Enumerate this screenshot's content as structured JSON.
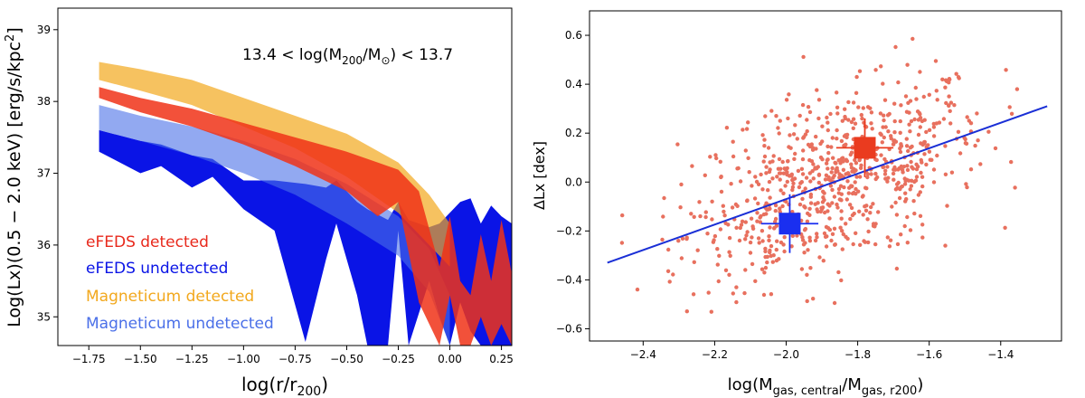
{
  "chart_data": [
    {
      "type": "area",
      "panel": "left",
      "xlabel": "log(r/r200)",
      "ylabel": "Log(Lx)(0.5 − 2.0 keV) [erg/s/kpc²]",
      "xlim": [
        -1.9,
        0.3
      ],
      "ylim": [
        34.6,
        39.3
      ],
      "xticks": [
        -1.75,
        -1.5,
        -1.25,
        -1.0,
        -0.75,
        -0.5,
        -0.25,
        0.0,
        0.25
      ],
      "xtick_labels": [
        "−1.75",
        "−1.50",
        "−1.25",
        "−1.00",
        "−0.75",
        "−0.50",
        "−0.25",
        "0.00",
        "0.25"
      ],
      "yticks": [
        35,
        36,
        37,
        38,
        39
      ],
      "ytick_labels": [
        "35",
        "36",
        "37",
        "38",
        "39"
      ],
      "annotation": "13.4 < log(M200/M⊙) < 13.7",
      "annotation_parts": {
        "pre": "13.4 < log(M",
        "sub1": "200",
        "mid": "/M",
        "sub2": "⊙",
        "post": ") < 13.7"
      },
      "legend_position": "lower-left",
      "series": [
        {
          "name": "eFEDS undetected",
          "color": "#0a14e6",
          "opacity": 1.0,
          "x": [
            -1.7,
            -1.5,
            -1.4,
            -1.25,
            -1.15,
            -1.0,
            -0.85,
            -0.7,
            -0.6,
            -0.55,
            -0.45,
            -0.4,
            -0.3,
            -0.25,
            -0.2,
            -0.1,
            -0.05,
            0.0,
            0.05,
            0.1,
            0.15,
            0.2,
            0.25,
            0.3
          ],
          "upper": [
            37.6,
            37.45,
            37.4,
            37.25,
            37.2,
            36.9,
            36.9,
            36.85,
            36.8,
            36.9,
            36.6,
            36.5,
            36.35,
            36.6,
            36.35,
            36.25,
            36.3,
            36.45,
            36.6,
            36.65,
            36.3,
            36.55,
            36.4,
            36.3
          ],
          "lower": [
            37.3,
            37.0,
            37.1,
            36.8,
            36.95,
            36.5,
            36.2,
            34.65,
            35.8,
            36.3,
            35.3,
            34.6,
            34.6,
            36.2,
            34.6,
            35.5,
            35.0,
            34.6,
            35.2,
            34.8,
            34.6,
            34.6,
            34.6,
            34.6
          ]
        },
        {
          "name": "Magneticum detected",
          "color": "#f2a81d",
          "opacity": 0.7,
          "x": [
            -1.7,
            -1.5,
            -1.25,
            -1.0,
            -0.75,
            -0.5,
            -0.25,
            -0.1,
            0.0
          ],
          "upper": [
            38.55,
            38.45,
            38.3,
            38.05,
            37.8,
            37.55,
            37.15,
            36.7,
            36.3
          ],
          "lower": [
            38.3,
            38.15,
            37.95,
            37.65,
            37.35,
            36.95,
            36.45,
            36.0,
            35.7
          ]
        },
        {
          "name": "Magneticum undetected",
          "color": "#4a6fe8",
          "opacity": 0.6,
          "x": [
            -1.7,
            -1.5,
            -1.25,
            -1.0,
            -0.75,
            -0.5,
            -0.25,
            -0.1,
            0.0
          ],
          "upper": [
            37.95,
            37.8,
            37.65,
            37.45,
            37.2,
            36.85,
            36.4,
            35.95,
            35.3
          ],
          "lower": [
            37.6,
            37.45,
            37.25,
            37.0,
            36.7,
            36.3,
            35.85,
            35.35,
            34.6
          ]
        },
        {
          "name": "eFEDS detected",
          "color": "#f03218",
          "opacity": 0.85,
          "x": [
            -1.7,
            -1.5,
            -1.25,
            -1.0,
            -0.75,
            -0.5,
            -0.35,
            -0.25,
            -0.15,
            -0.05,
            0.0,
            0.05,
            0.1,
            0.15,
            0.2,
            0.25,
            0.3
          ],
          "upper": [
            38.2,
            38.05,
            37.9,
            37.7,
            37.5,
            37.3,
            37.15,
            37.05,
            36.75,
            35.7,
            36.4,
            35.5,
            35.3,
            36.15,
            35.5,
            36.35,
            35.6
          ],
          "lower": [
            38.05,
            37.85,
            37.65,
            37.4,
            37.1,
            36.75,
            36.4,
            36.6,
            35.2,
            34.6,
            35.3,
            34.6,
            34.6,
            35.0,
            34.6,
            34.9,
            34.6
          ]
        }
      ],
      "legend": [
        {
          "label": "eFEDS detected",
          "color": "#e8291c"
        },
        {
          "label": "eFEDS undetected",
          "color": "#0a14e6"
        },
        {
          "label": "Magneticum detected",
          "color": "#f2a81d"
        },
        {
          "label": "Magneticum undetected",
          "color": "#4a6fe8"
        }
      ]
    },
    {
      "type": "scatter",
      "panel": "right",
      "xlabel": "log(Mgas, central/Mgas, r200)",
      "xlabel_parts": {
        "pre": "log(M",
        "sub1": "gas, central",
        "mid": "/M",
        "sub2": "gas, r200",
        "post": ")"
      },
      "ylabel": "ΔLx [dex]",
      "xlim": [
        -2.55,
        -1.23
      ],
      "ylim": [
        -0.65,
        0.7
      ],
      "xticks": [
        -2.4,
        -2.2,
        -2.0,
        -1.8,
        -1.6,
        -1.4
      ],
      "xtick_labels": [
        "−2.4",
        "−2.2",
        "−2.0",
        "−1.8",
        "−1.6",
        "−1.4"
      ],
      "yticks": [
        -0.6,
        -0.4,
        -0.2,
        0.0,
        0.2,
        0.4,
        0.6
      ],
      "ytick_labels": [
        "−0.6",
        "−0.4",
        "−0.2",
        "0.0",
        "0.2",
        "0.4",
        "0.6"
      ],
      "scatter": {
        "color": "#e8705e",
        "count": 800,
        "x_mean": -1.86,
        "x_std": 0.21,
        "slope": 0.52,
        "intercept": 0.97,
        "scatter_std": 0.17
      },
      "fit_line": {
        "color": "#1a2fd6",
        "x": [
          -2.5,
          -1.27
        ],
        "y": [
          -0.33,
          0.31
        ]
      },
      "markers": [
        {
          "name": "detected",
          "color": "#ea3b1f",
          "x": -1.78,
          "y": 0.14,
          "xerr": 0.08,
          "yerr": 0.12
        },
        {
          "name": "undetected",
          "color": "#1a2ff0",
          "x": -1.99,
          "y": -0.17,
          "xerr": 0.08,
          "yerr": 0.12
        }
      ]
    }
  ]
}
